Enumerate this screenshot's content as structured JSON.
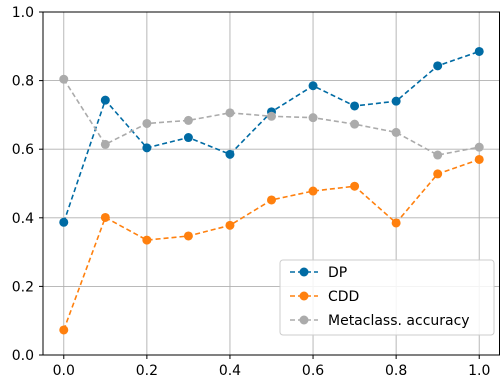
{
  "chart_data": {
    "type": "line",
    "title": "",
    "xlabel": "",
    "ylabel": "",
    "xlim": [
      -0.05,
      1.05
    ],
    "ylim": [
      0.0,
      1.0
    ],
    "grid": true,
    "legend_position": "lower-right",
    "x_ticks": [
      {
        "value": 0.0,
        "label": "0.0"
      },
      {
        "value": 0.2,
        "label": "0.2"
      },
      {
        "value": 0.4,
        "label": "0.4"
      },
      {
        "value": 0.6,
        "label": "0.6"
      },
      {
        "value": 0.8,
        "label": "0.8"
      },
      {
        "value": 1.0,
        "label": "1.0"
      }
    ],
    "y_ticks": [
      {
        "value": 0.0,
        "label": "0.0"
      },
      {
        "value": 0.2,
        "label": "0.2"
      },
      {
        "value": 0.4,
        "label": "0.4"
      },
      {
        "value": 0.6,
        "label": "0.6"
      },
      {
        "value": 0.8,
        "label": "0.8"
      },
      {
        "value": 1.0,
        "label": "1.0"
      }
    ],
    "x": [
      0.0,
      0.1,
      0.2,
      0.3,
      0.4,
      0.5,
      0.6,
      0.7,
      0.8,
      0.9,
      1.0
    ],
    "series": [
      {
        "name": "DP",
        "color": "#006ba4",
        "values": [
          0.387,
          0.743,
          0.604,
          0.634,
          0.585,
          0.709,
          0.785,
          0.726,
          0.74,
          0.843,
          0.885
        ]
      },
      {
        "name": "CDD",
        "color": "#ff800e",
        "values": [
          0.073,
          0.401,
          0.335,
          0.347,
          0.378,
          0.452,
          0.478,
          0.492,
          0.385,
          0.528,
          0.57
        ]
      },
      {
        "name": "Metaclass. accuracy",
        "color": "#ababab",
        "values": [
          0.804,
          0.614,
          0.675,
          0.684,
          0.706,
          0.696,
          0.692,
          0.673,
          0.649,
          0.583,
          0.606
        ]
      }
    ]
  }
}
